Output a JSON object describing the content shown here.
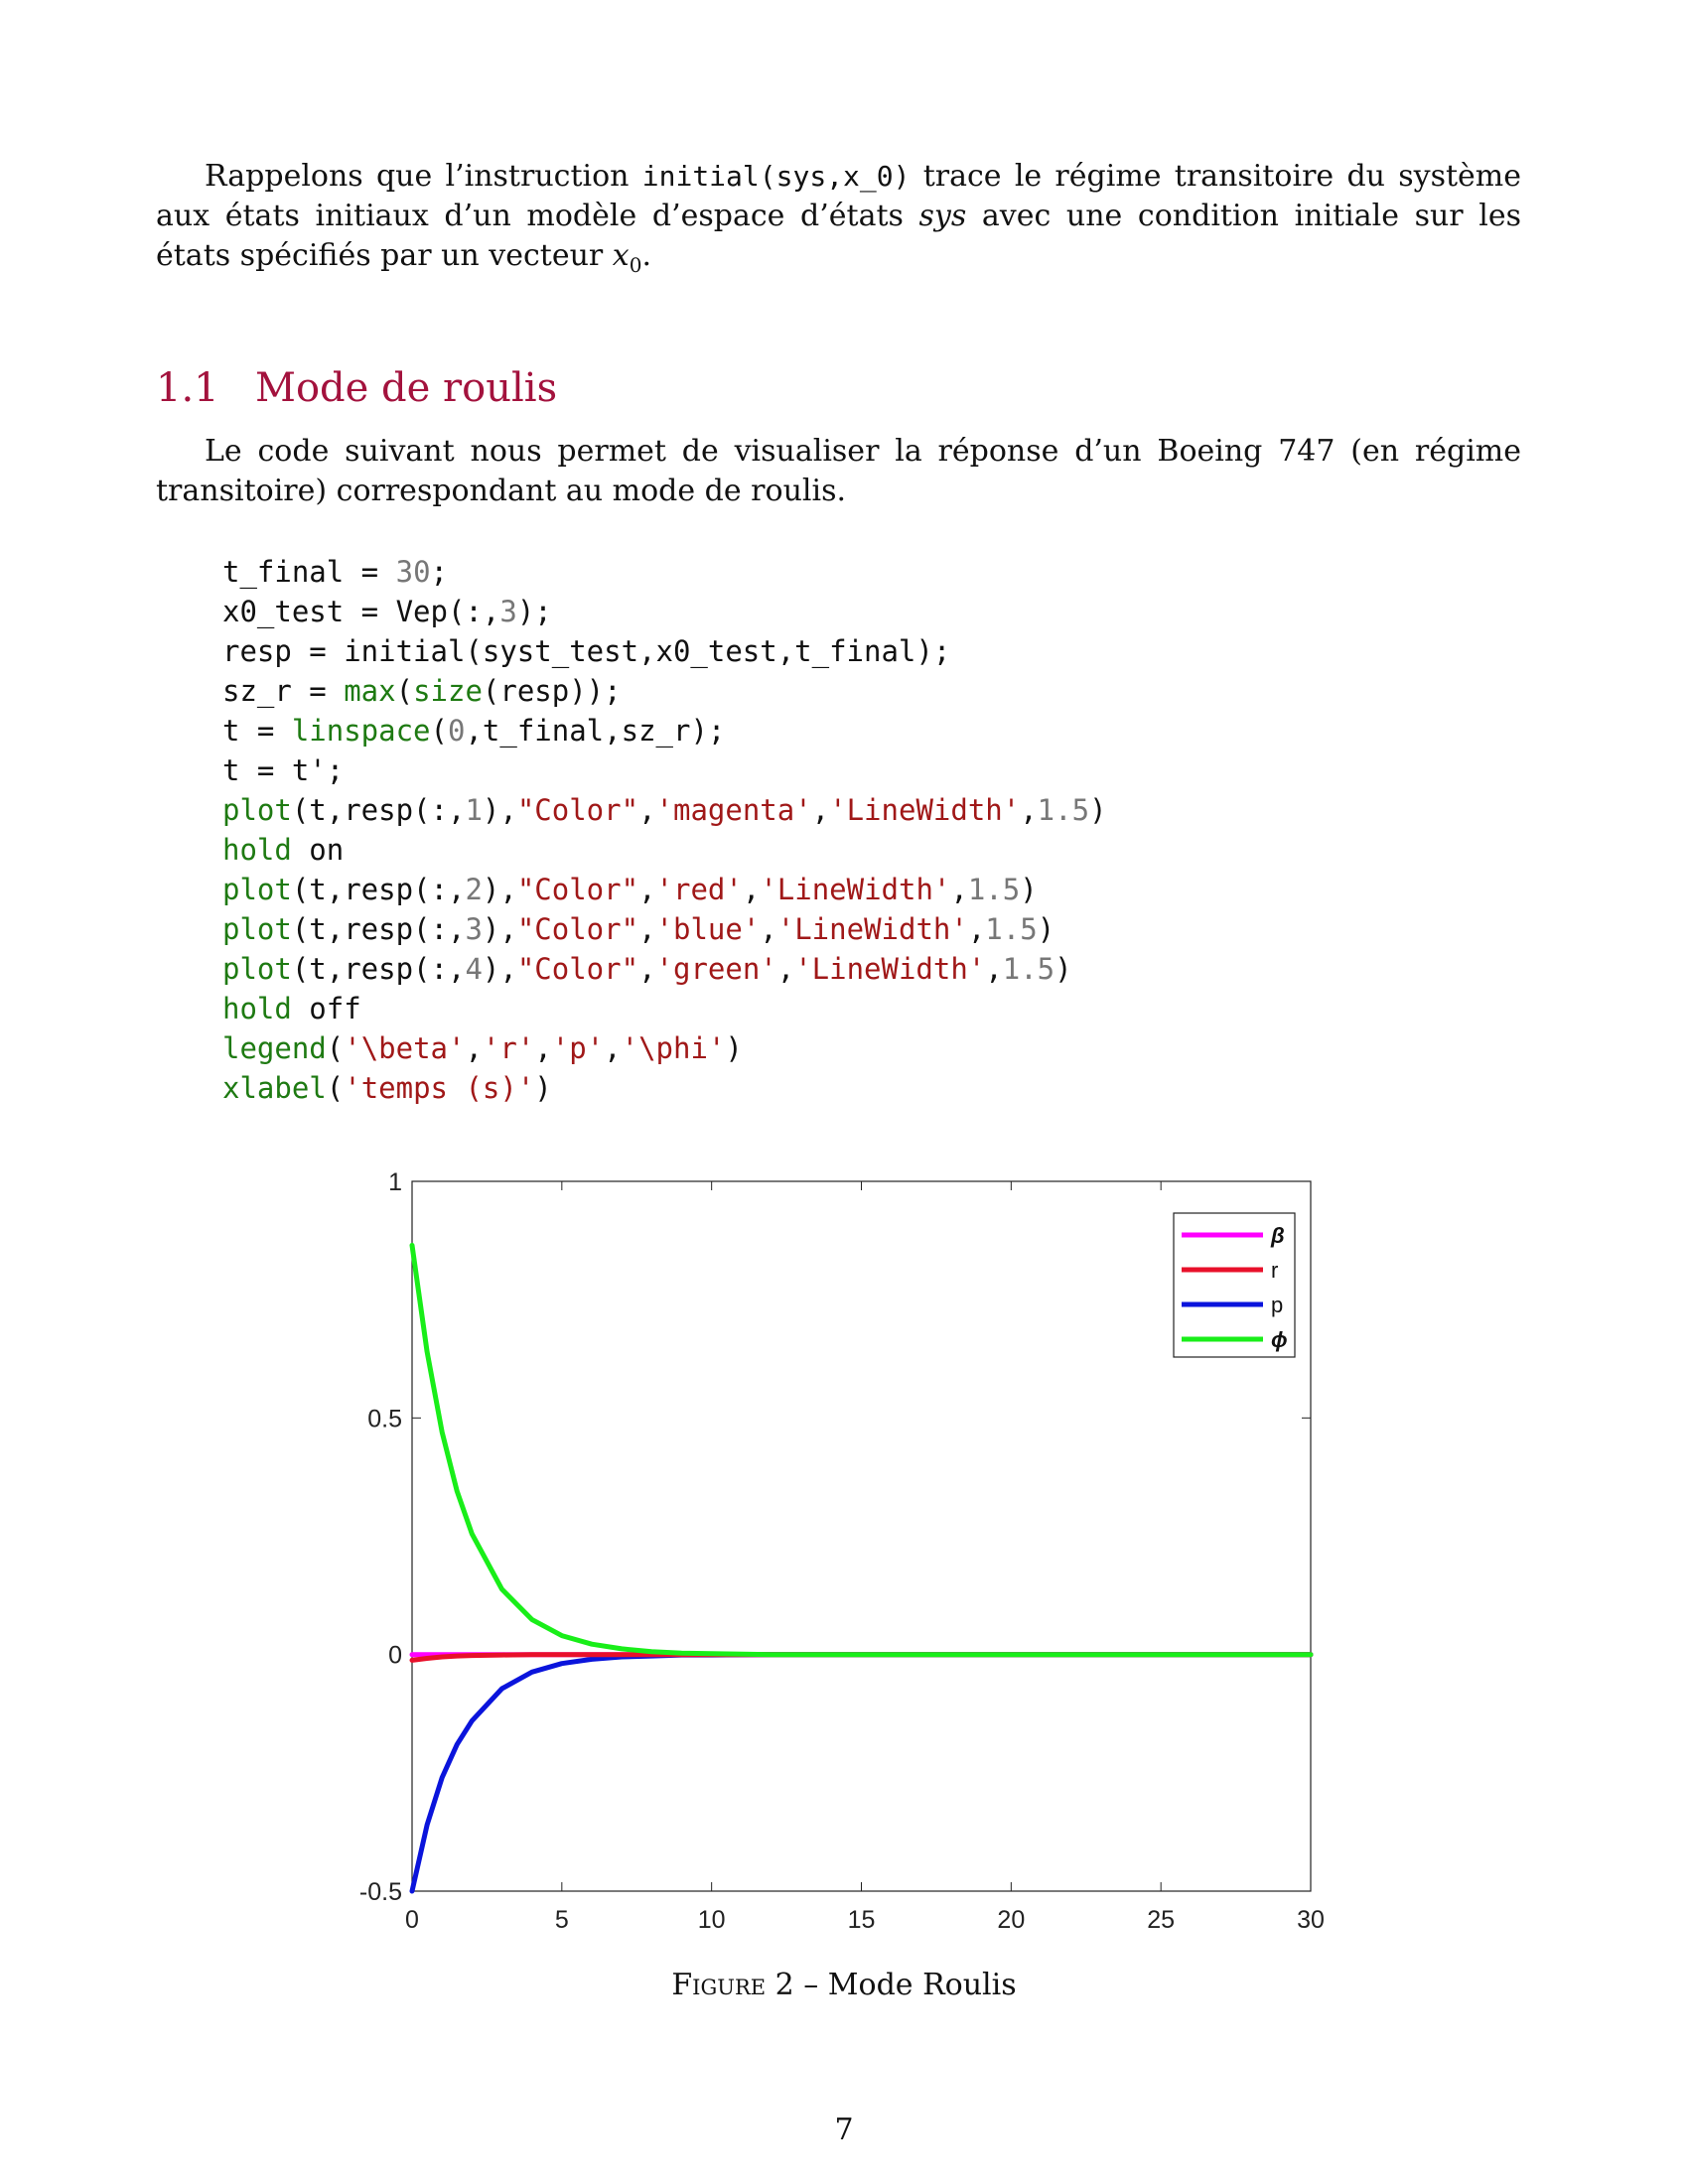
{
  "intro": {
    "before": "Rappelons que l’instruction ",
    "code": "initial(sys,x_0)",
    "middle": " trace le régime transitoire du système aux états initiaux d’un modèle d’espace d’états ",
    "sys": "sys",
    "after": " avec une condition initiale sur les états spécifiés par un vecteur ",
    "var": "x",
    "var_sub": "0",
    "end": "."
  },
  "section": {
    "number": "1.1",
    "title": "Mode de roulis"
  },
  "lead": "Le code suivant nous permet de visualiser la réponse d’un Boeing 747 (en régime transitoire) correspondant au mode de roulis.",
  "code_lines": [
    [
      {
        "t": "t_final = ",
        "c": ""
      },
      {
        "t": "30",
        "c": "numlit"
      },
      {
        "t": ";",
        "c": ""
      }
    ],
    [
      {
        "t": "x0_test = Vep(:,",
        "c": ""
      },
      {
        "t": "3",
        "c": "numlit"
      },
      {
        "t": ");",
        "c": ""
      }
    ],
    [
      {
        "t": "resp = initial(syst_test,x0_test,t_final);",
        "c": ""
      }
    ],
    [
      {
        "t": "sz_r = ",
        "c": ""
      },
      {
        "t": "max",
        "c": "kw"
      },
      {
        "t": "(",
        "c": ""
      },
      {
        "t": "size",
        "c": "kw"
      },
      {
        "t": "(resp));",
        "c": ""
      }
    ],
    [
      {
        "t": "t = ",
        "c": ""
      },
      {
        "t": "linspace",
        "c": "kw"
      },
      {
        "t": "(",
        "c": ""
      },
      {
        "t": "0",
        "c": "numlit"
      },
      {
        "t": ",t_final,sz_r);",
        "c": ""
      }
    ],
    [
      {
        "t": "t = t';",
        "c": ""
      }
    ],
    [
      {
        "t": "plot",
        "c": "kw"
      },
      {
        "t": "(t,resp(:,",
        "c": ""
      },
      {
        "t": "1",
        "c": "numlit"
      },
      {
        "t": "),",
        "c": ""
      },
      {
        "t": "\"Color\"",
        "c": "str"
      },
      {
        "t": ",",
        "c": ""
      },
      {
        "t": "'magenta'",
        "c": "str"
      },
      {
        "t": ",",
        "c": ""
      },
      {
        "t": "'LineWidth'",
        "c": "str"
      },
      {
        "t": ",",
        "c": ""
      },
      {
        "t": "1.5",
        "c": "numlit"
      },
      {
        "t": ")",
        "c": ""
      }
    ],
    [
      {
        "t": "hold",
        "c": "kw"
      },
      {
        "t": " on",
        "c": ""
      }
    ],
    [
      {
        "t": "plot",
        "c": "kw"
      },
      {
        "t": "(t,resp(:,",
        "c": ""
      },
      {
        "t": "2",
        "c": "numlit"
      },
      {
        "t": "),",
        "c": ""
      },
      {
        "t": "\"Color\"",
        "c": "str"
      },
      {
        "t": ",",
        "c": ""
      },
      {
        "t": "'red'",
        "c": "str"
      },
      {
        "t": ",",
        "c": ""
      },
      {
        "t": "'LineWidth'",
        "c": "str"
      },
      {
        "t": ",",
        "c": ""
      },
      {
        "t": "1.5",
        "c": "numlit"
      },
      {
        "t": ")",
        "c": ""
      }
    ],
    [
      {
        "t": "plot",
        "c": "kw"
      },
      {
        "t": "(t,resp(:,",
        "c": ""
      },
      {
        "t": "3",
        "c": "numlit"
      },
      {
        "t": "),",
        "c": ""
      },
      {
        "t": "\"Color\"",
        "c": "str"
      },
      {
        "t": ",",
        "c": ""
      },
      {
        "t": "'blue'",
        "c": "str"
      },
      {
        "t": ",",
        "c": ""
      },
      {
        "t": "'LineWidth'",
        "c": "str"
      },
      {
        "t": ",",
        "c": ""
      },
      {
        "t": "1.5",
        "c": "numlit"
      },
      {
        "t": ")",
        "c": ""
      }
    ],
    [
      {
        "t": "plot",
        "c": "kw"
      },
      {
        "t": "(t,resp(:,",
        "c": ""
      },
      {
        "t": "4",
        "c": "numlit"
      },
      {
        "t": "),",
        "c": ""
      },
      {
        "t": "\"Color\"",
        "c": "str"
      },
      {
        "t": ",",
        "c": ""
      },
      {
        "t": "'green'",
        "c": "str"
      },
      {
        "t": ",",
        "c": ""
      },
      {
        "t": "'LineWidth'",
        "c": "str"
      },
      {
        "t": ",",
        "c": ""
      },
      {
        "t": "1.5",
        "c": "numlit"
      },
      {
        "t": ")",
        "c": ""
      }
    ],
    [
      {
        "t": "hold",
        "c": "kw"
      },
      {
        "t": " off",
        "c": ""
      }
    ],
    [
      {
        "t": "legend",
        "c": "kw"
      },
      {
        "t": "(",
        "c": ""
      },
      {
        "t": "'\\beta'",
        "c": "str"
      },
      {
        "t": ",",
        "c": ""
      },
      {
        "t": "'r'",
        "c": "str"
      },
      {
        "t": ",",
        "c": ""
      },
      {
        "t": "'p'",
        "c": "str"
      },
      {
        "t": ",",
        "c": ""
      },
      {
        "t": "'\\phi'",
        "c": "str"
      },
      {
        "t": ")",
        "c": ""
      }
    ],
    [
      {
        "t": "xlabel",
        "c": "kw"
      },
      {
        "t": "(",
        "c": ""
      },
      {
        "t": "'temps (s)'",
        "c": "str"
      },
      {
        "t": ")",
        "c": ""
      }
    ]
  ],
  "chart_data": {
    "type": "line",
    "xlim": [
      0,
      30
    ],
    "ylim": [
      -0.5,
      1
    ],
    "xticks": [
      "0",
      "5",
      "10",
      "15",
      "20",
      "25",
      "30"
    ],
    "yticks": [
      "1",
      "0.5",
      "0",
      "-0.5"
    ],
    "grid": false,
    "legend_position": "top-right",
    "x": [
      0,
      0.5,
      1,
      1.5,
      2,
      3,
      4,
      5,
      6,
      7,
      8,
      9,
      10,
      12,
      14,
      16,
      18,
      20,
      22,
      24,
      26,
      28,
      30
    ],
    "series": [
      {
        "name": "β",
        "color": "#ff00ff",
        "values": [
          0,
          0,
          0,
          0,
          0,
          0,
          0,
          0,
          0,
          0,
          0,
          0,
          0,
          0,
          0,
          0,
          0,
          0,
          0,
          0,
          0,
          0,
          0
        ]
      },
      {
        "name": "r",
        "color": "#e8102a",
        "values": [
          -0.012,
          -0.008,
          -0.005,
          -0.003,
          -0.002,
          -0.001,
          0,
          0,
          0,
          0,
          0,
          0,
          0,
          0,
          0,
          0,
          0,
          0,
          0,
          0,
          0,
          0,
          0
        ]
      },
      {
        "name": "p",
        "color": "#0a14dc",
        "values": [
          -0.5,
          -0.36,
          -0.26,
          -0.19,
          -0.14,
          -0.072,
          -0.037,
          -0.019,
          -0.01,
          -0.005,
          -0.003,
          -0.001,
          -0.001,
          0,
          0,
          0,
          0,
          0,
          0,
          0,
          0,
          0,
          0
        ]
      },
      {
        "name": "ϕ",
        "color": "#19ee19",
        "values": [
          0.865,
          0.64,
          0.47,
          0.345,
          0.255,
          0.138,
          0.074,
          0.04,
          0.022,
          0.012,
          0.006,
          0.003,
          0.002,
          0,
          0,
          0,
          0,
          0,
          0,
          0,
          0,
          0,
          0
        ]
      }
    ]
  },
  "caption": {
    "label": "Figure 2",
    "sep": " – ",
    "text": "Mode Roulis"
  },
  "page_number": "7"
}
